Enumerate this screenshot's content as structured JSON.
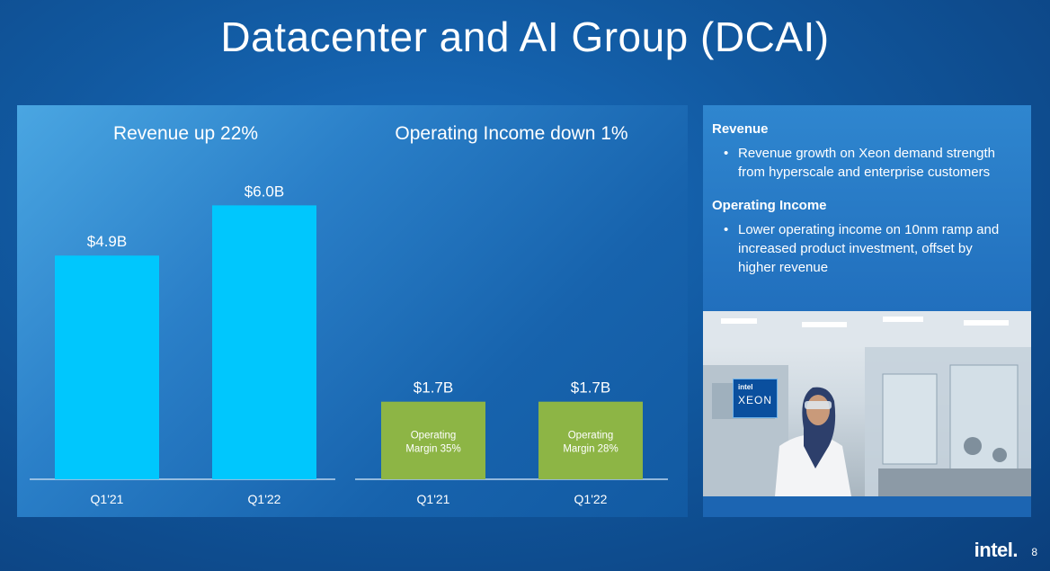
{
  "title": "Datacenter and AI Group (DCAI)",
  "chart_data": [
    {
      "type": "bar",
      "title": "Revenue up 22%",
      "categories": [
        "Q1'21",
        "Q1'22"
      ],
      "values": [
        4.9,
        6.0
      ],
      "data_labels": [
        "$4.9B",
        "$6.0B"
      ],
      "bar_color": "#00c7fd",
      "ylim": [
        0,
        6.5
      ]
    },
    {
      "type": "bar",
      "title": "Operating Income down 1%",
      "categories": [
        "Q1'21",
        "Q1'22"
      ],
      "values": [
        1.7,
        1.7
      ],
      "data_labels": [
        "$1.7B",
        "$1.7B"
      ],
      "bar_annotations": [
        [
          "Operating",
          "Margin 35%"
        ],
        [
          "Operating",
          "Margin 28%"
        ]
      ],
      "bar_color": "#8db545",
      "ylim": [
        0,
        6.5
      ]
    }
  ],
  "sidebar": {
    "sections": [
      {
        "heading": "Revenue",
        "bullets": [
          [
            "Revenue growth on Xeon demand strength",
            "from hyperscale and enterprise customers"
          ]
        ]
      },
      {
        "heading": "Operating Income",
        "bullets": [
          [
            "Lower operating income on 10nm ramp and",
            "increased product investment, offset by",
            "higher revenue"
          ]
        ]
      }
    ]
  },
  "photo": {
    "badge_brand": "intel",
    "badge_product": "XEON"
  },
  "footer": {
    "logo": "intel.",
    "page_number": "8"
  },
  "colors": {
    "background": "#11589f",
    "accent_cyan": "#00c7fd",
    "accent_green": "#8db545"
  }
}
